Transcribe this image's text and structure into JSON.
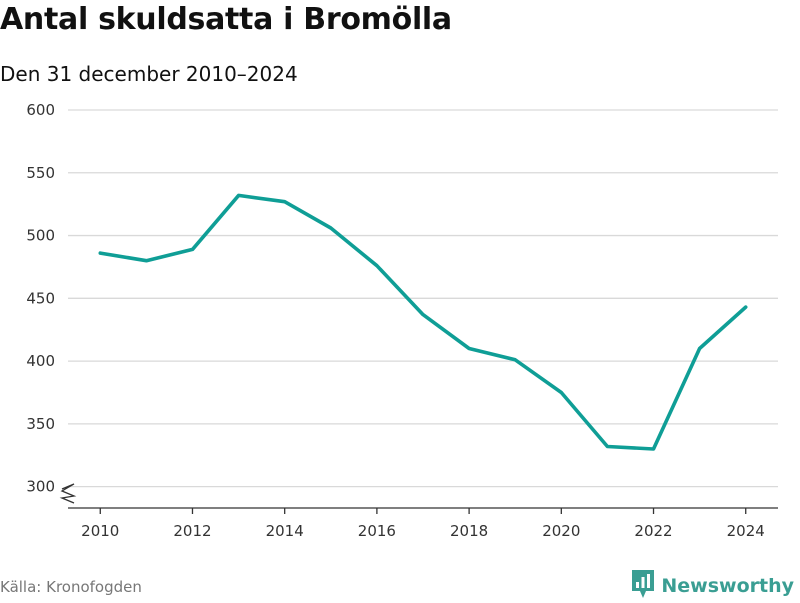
{
  "header": {
    "title": "Antal skuldsatta i Bromölla",
    "subtitle": "Den 31 december 2010–2024"
  },
  "footer": {
    "source": "Källa: Kronofogden",
    "brand": "Newsworthy",
    "brand_icon": "newsworthy-logo-icon"
  },
  "colors": {
    "line": "#0f9e96",
    "grid": "#d9d9d9",
    "axis": "#333333",
    "brand": "#3a9e93"
  },
  "chart_data": {
    "type": "line",
    "title": "Antal skuldsatta i Bromölla",
    "subtitle": "Den 31 december 2010–2024",
    "xlabel": "",
    "ylabel": "",
    "x": [
      2010,
      2011,
      2012,
      2013,
      2014,
      2015,
      2016,
      2017,
      2018,
      2019,
      2020,
      2021,
      2022,
      2023,
      2024
    ],
    "series": [
      {
        "values": [
          486,
          480,
          489,
          532,
          527,
          506,
          476,
          437,
          410,
          401,
          375,
          332,
          330,
          410,
          443
        ]
      }
    ],
    "xlim": [
      2009.3,
      2024.7
    ],
    "ylim": [
      283,
      600
    ],
    "y_ticks": [
      300,
      350,
      400,
      450,
      500,
      550,
      600
    ],
    "x_ticks": [
      2010,
      2012,
      2014,
      2016,
      2018,
      2020,
      2022,
      2024
    ],
    "y_tick_labels": [
      "300",
      "350",
      "400",
      "450",
      "500",
      "550",
      "600"
    ],
    "x_tick_labels": [
      "2010",
      "2012",
      "2014",
      "2016",
      "2018",
      "2020",
      "2022",
      "2024"
    ],
    "grid": true,
    "y_axis_break": true,
    "legend": "none"
  }
}
